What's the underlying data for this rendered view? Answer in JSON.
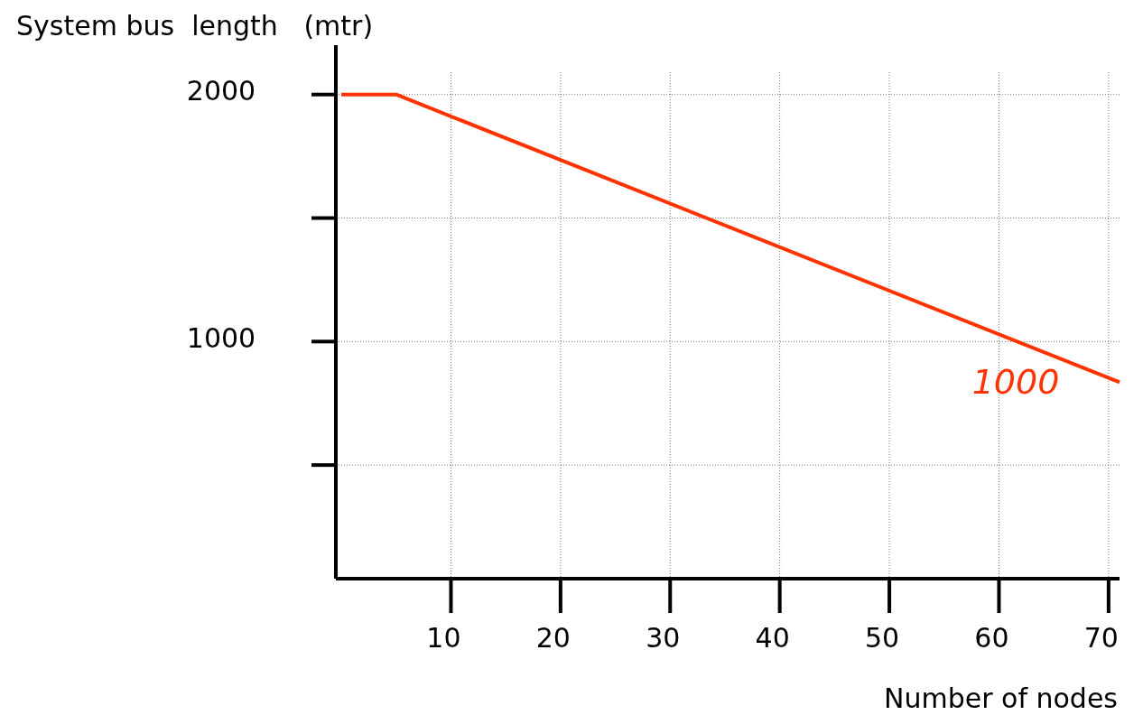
{
  "chart_data": {
    "type": "line",
    "ylabel": "System bus  length   (mtr)",
    "xlabel": "Number of nodes",
    "x": [
      0,
      5,
      71
    ],
    "series": [
      {
        "color": "#ff3300",
        "values": [
          2000,
          2000,
          835
        ]
      }
    ],
    "xlim": [
      -0.5,
      71
    ],
    "xticks": [
      10,
      20,
      30,
      40,
      50,
      60,
      70
    ],
    "ylim": [
      40,
      2200
    ],
    "yticks": [
      {
        "value": 500,
        "label": null
      },
      1000,
      {
        "value": 1500,
        "label": null
      },
      2000
    ],
    "grid": true,
    "annotations": [
      "1000"
    ]
  }
}
